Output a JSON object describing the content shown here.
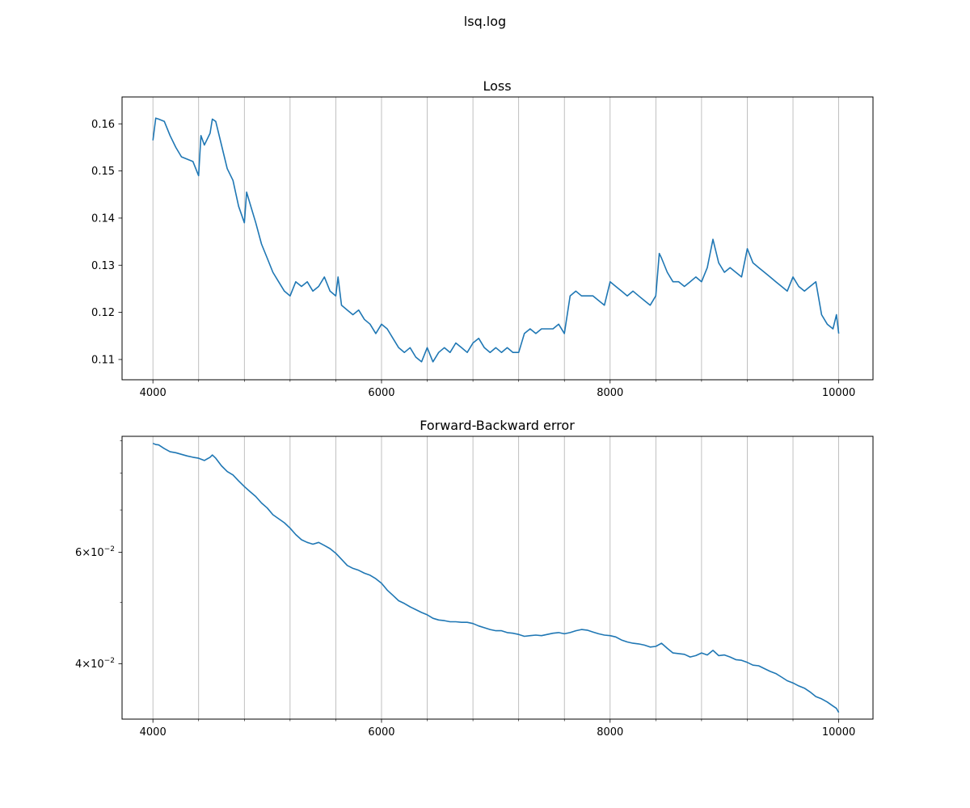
{
  "figure": {
    "suptitle": "lsq.log"
  },
  "chart_data": [
    {
      "type": "line",
      "title": "Loss",
      "xlabel": "",
      "ylabel": "",
      "xlim": [
        3730,
        10300
      ],
      "ylim": [
        0.1057,
        0.1657
      ],
      "yscale": "linear",
      "grid": "x-major-and-minor",
      "xticks": [
        4000,
        6000,
        8000,
        10000
      ],
      "xtick_labels": [
        "4000",
        "6000",
        "8000",
        "10000"
      ],
      "xminor_ticks": [
        4400,
        4800,
        5200,
        5600,
        6400,
        6800,
        7200,
        7600,
        8400,
        8800,
        9200,
        9600
      ],
      "yticks": [
        0.11,
        0.12,
        0.13,
        0.14,
        0.15,
        0.16
      ],
      "ytick_labels": [
        "0.11",
        "0.12",
        "0.13",
        "0.14",
        "0.15",
        "0.16"
      ],
      "color": "#1f77b4",
      "series": [
        {
          "x": [
            4000,
            4025,
            4050,
            4100,
            4150,
            4200,
            4250,
            4300,
            4350,
            4400,
            4420,
            4450,
            4500,
            4520,
            4550,
            4600,
            4650,
            4700,
            4750,
            4800,
            4820,
            4850,
            4900,
            4950,
            5000,
            5050,
            5100,
            5150,
            5200,
            5250,
            5300,
            5350,
            5400,
            5450,
            5500,
            5550,
            5600,
            5620,
            5650,
            5700,
            5750,
            5800,
            5850,
            5900,
            5950,
            6000,
            6050,
            6100,
            6150,
            6200,
            6250,
            6300,
            6350,
            6400,
            6450,
            6500,
            6550,
            6600,
            6650,
            6700,
            6750,
            6800,
            6850,
            6900,
            6950,
            7000,
            7050,
            7100,
            7150,
            7200,
            7250,
            7300,
            7350,
            7400,
            7450,
            7500,
            7550,
            7600,
            7650,
            7700,
            7750,
            7800,
            7850,
            7900,
            7950,
            8000,
            8050,
            8100,
            8150,
            8200,
            8250,
            8300,
            8350,
            8400,
            8430,
            8450,
            8500,
            8550,
            8600,
            8650,
            8700,
            8750,
            8800,
            8850,
            8900,
            8950,
            9000,
            9050,
            9100,
            9150,
            9200,
            9250,
            9300,
            9350,
            9400,
            9450,
            9500,
            9550,
            9600,
            9650,
            9700,
            9750,
            9800,
            9850,
            9900,
            9950,
            9980,
            10000
          ],
          "y": [
            0.1565,
            0.1612,
            0.161,
            0.1605,
            0.1575,
            0.155,
            0.153,
            0.1525,
            0.152,
            0.149,
            0.1575,
            0.1555,
            0.158,
            0.161,
            0.1605,
            0.1555,
            0.1505,
            0.148,
            0.1425,
            0.139,
            0.1455,
            0.143,
            0.139,
            0.1345,
            0.1315,
            0.1285,
            0.1265,
            0.1245,
            0.1235,
            0.1265,
            0.1255,
            0.1265,
            0.1245,
            0.1255,
            0.1275,
            0.1245,
            0.1235,
            0.1275,
            0.1215,
            0.1205,
            0.1195,
            0.1205,
            0.1185,
            0.1175,
            0.1155,
            0.1175,
            0.1165,
            0.1145,
            0.1125,
            0.1115,
            0.1125,
            0.1105,
            0.1095,
            0.1125,
            0.1095,
            0.1115,
            0.1125,
            0.1115,
            0.1135,
            0.1125,
            0.1115,
            0.1135,
            0.1145,
            0.1125,
            0.1115,
            0.1125,
            0.1115,
            0.1125,
            0.1115,
            0.1115,
            0.1155,
            0.1165,
            0.1155,
            0.1165,
            0.1165,
            0.1165,
            0.1175,
            0.1155,
            0.1235,
            0.1245,
            0.1235,
            0.1235,
            0.1235,
            0.1225,
            0.1215,
            0.1265,
            0.1255,
            0.1245,
            0.1235,
            0.1245,
            0.1235,
            0.1225,
            0.1215,
            0.1235,
            0.1325,
            0.1315,
            0.1285,
            0.1265,
            0.1265,
            0.1255,
            0.1265,
            0.1275,
            0.1265,
            0.1295,
            0.1355,
            0.1305,
            0.1285,
            0.1295,
            0.1285,
            0.1275,
            0.1335,
            0.1305,
            0.1295,
            0.1285,
            0.1275,
            0.1265,
            0.1255,
            0.1245,
            0.1275,
            0.1255,
            0.1245,
            0.1255,
            0.1265,
            0.1195,
            0.1175,
            0.1165,
            0.1195,
            0.1155
          ]
        }
      ]
    },
    {
      "type": "line",
      "title": "Forward-Backward error",
      "xlabel": "",
      "ylabel": "",
      "xlim": [
        3730,
        10300
      ],
      "ylim": [
        0.0327,
        0.0915
      ],
      "yscale": "log",
      "grid": "x-major-and-minor",
      "xticks": [
        4000,
        6000,
        8000,
        10000
      ],
      "xtick_labels": [
        "4000",
        "6000",
        "8000",
        "10000"
      ],
      "xminor_ticks": [
        4400,
        4800,
        5200,
        5600,
        6400,
        6800,
        7200,
        7600,
        8400,
        8800,
        9200,
        9600
      ],
      "yticks": [
        0.04,
        0.06
      ],
      "ytick_labels": [
        {
          "mantissa": "4",
          "base": "10",
          "exponent": "−2"
        },
        {
          "mantissa": "6",
          "base": "10",
          "exponent": "−2"
        }
      ],
      "yminor_ticks": [
        0.05,
        0.07,
        0.08,
        0.09
      ],
      "color": "#1f77b4",
      "series": [
        {
          "x": [
            4000,
            4025,
            4050,
            4100,
            4150,
            4200,
            4250,
            4300,
            4350,
            4400,
            4450,
            4500,
            4520,
            4550,
            4600,
            4650,
            4700,
            4750,
            4800,
            4850,
            4900,
            4950,
            5000,
            5050,
            5100,
            5150,
            5200,
            5250,
            5300,
            5350,
            5400,
            5450,
            5500,
            5550,
            5600,
            5650,
            5700,
            5750,
            5800,
            5850,
            5900,
            5950,
            6000,
            6050,
            6100,
            6150,
            6200,
            6250,
            6300,
            6350,
            6400,
            6450,
            6500,
            6550,
            6600,
            6650,
            6700,
            6750,
            6800,
            6850,
            6900,
            6950,
            7000,
            7050,
            7100,
            7150,
            7200,
            7250,
            7300,
            7350,
            7400,
            7450,
            7500,
            7550,
            7600,
            7650,
            7700,
            7750,
            7800,
            7850,
            7900,
            7950,
            8000,
            8050,
            8100,
            8150,
            8200,
            8250,
            8300,
            8350,
            8400,
            8450,
            8500,
            8550,
            8600,
            8650,
            8700,
            8750,
            8800,
            8850,
            8900,
            8950,
            9000,
            9050,
            9100,
            9150,
            9200,
            9250,
            9300,
            9350,
            9400,
            9450,
            9500,
            9550,
            9600,
            9650,
            9700,
            9750,
            9800,
            9850,
            9900,
            9950,
            9980,
            10000
          ],
          "y": [
            0.0892,
            0.0888,
            0.0887,
            0.0875,
            0.0865,
            0.0862,
            0.0857,
            0.0852,
            0.0848,
            0.0845,
            0.0838,
            0.0848,
            0.0855,
            0.0845,
            0.0822,
            0.0805,
            0.0795,
            0.0778,
            0.0762,
            0.0748,
            0.0735,
            0.0718,
            0.0705,
            0.0688,
            0.0678,
            0.0668,
            0.0655,
            0.064,
            0.0628,
            0.0622,
            0.0618,
            0.0622,
            0.0615,
            0.0608,
            0.0598,
            0.0585,
            0.0572,
            0.0566,
            0.0562,
            0.0556,
            0.0552,
            0.0545,
            0.0536,
            0.0523,
            0.0513,
            0.0503,
            0.0498,
            0.0492,
            0.0487,
            0.0482,
            0.0478,
            0.0472,
            0.0469,
            0.0468,
            0.0466,
            0.0466,
            0.0465,
            0.0465,
            0.0463,
            0.0459,
            0.0456,
            0.0453,
            0.0451,
            0.0451,
            0.0448,
            0.0447,
            0.0445,
            0.0442,
            0.0443,
            0.0444,
            0.0443,
            0.0445,
            0.0447,
            0.0448,
            0.0446,
            0.0448,
            0.0451,
            0.0453,
            0.0452,
            0.0449,
            0.0446,
            0.0444,
            0.0443,
            0.0441,
            0.0436,
            0.0433,
            0.0431,
            0.043,
            0.0428,
            0.0425,
            0.0426,
            0.0431,
            0.0423,
            0.0416,
            0.0415,
            0.0414,
            0.041,
            0.0412,
            0.0416,
            0.0413,
            0.042,
            0.0412,
            0.0413,
            0.041,
            0.0406,
            0.0405,
            0.0402,
            0.0398,
            0.0397,
            0.0393,
            0.0389,
            0.0386,
            0.0381,
            0.0376,
            0.0373,
            0.0369,
            0.0366,
            0.0361,
            0.0355,
            0.0352,
            0.0348,
            0.0343,
            0.034,
            0.0335
          ]
        }
      ]
    }
  ]
}
